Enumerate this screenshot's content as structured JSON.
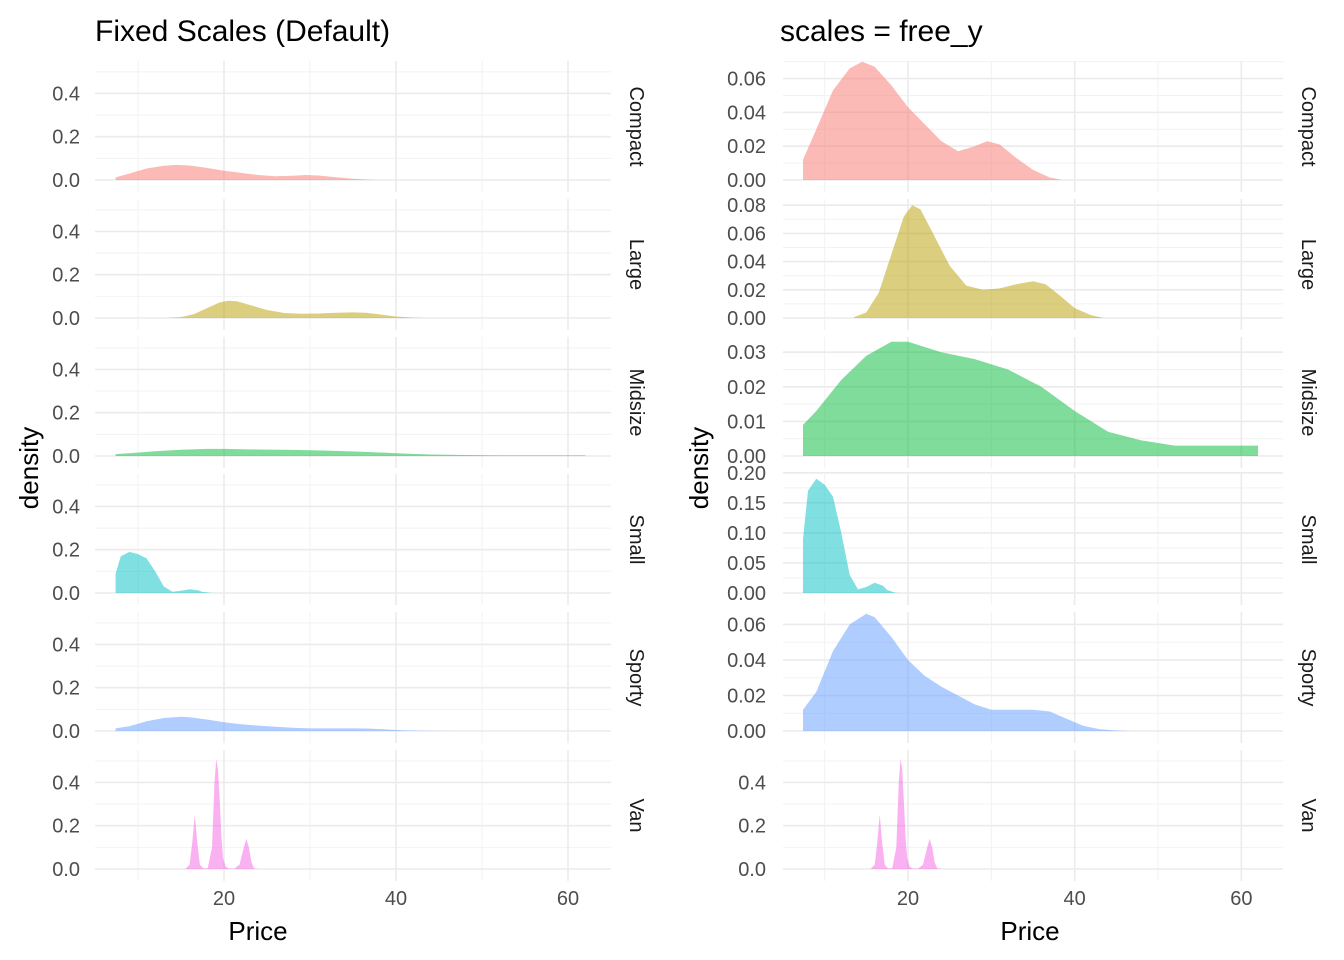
{
  "chart_data": [
    {
      "type": "area",
      "title": "Fixed Scales (Default)",
      "xlabel": "Price",
      "ylabel": "density",
      "scales": "fixed",
      "xlim": [
        5,
        65
      ],
      "x_ticks": [
        20,
        40,
        60
      ],
      "panels": [
        {
          "name": "Compact",
          "color": "#F8766D",
          "ylim": [
            0,
            0.55
          ],
          "y_ticks": [
            "0.0",
            "0.2",
            "0.4"
          ]
        },
        {
          "name": "Large",
          "color": "#B79F00",
          "ylim": [
            0,
            0.55
          ],
          "y_ticks": [
            "0.0",
            "0.2",
            "0.4"
          ]
        },
        {
          "name": "Midsize",
          "color": "#00BA38",
          "ylim": [
            0,
            0.55
          ],
          "y_ticks": [
            "0.0",
            "0.2",
            "0.4"
          ]
        },
        {
          "name": "Small",
          "color": "#00BFC4",
          "ylim": [
            0,
            0.55
          ],
          "y_ticks": [
            "0.0",
            "0.2",
            "0.4"
          ]
        },
        {
          "name": "Sporty",
          "color": "#619CFF",
          "ylim": [
            0,
            0.55
          ],
          "y_ticks": [
            "0.0",
            "0.2",
            "0.4"
          ]
        },
        {
          "name": "Van",
          "color": "#F564E3",
          "ylim": [
            0,
            0.55
          ],
          "y_ticks": [
            "0.0",
            "0.2",
            "0.4"
          ]
        }
      ]
    },
    {
      "type": "area",
      "title": "scales = free_y",
      "xlabel": "Price",
      "ylabel": "density",
      "scales": "free_y",
      "xlim": [
        5,
        65
      ],
      "x_ticks": [
        20,
        40,
        60
      ],
      "panels": [
        {
          "name": "Compact",
          "color": "#F8766D",
          "ylim": [
            0,
            0.0704
          ],
          "y_ticks": [
            "0.00",
            "0.02",
            "0.04",
            "0.06"
          ]
        },
        {
          "name": "Large",
          "color": "#B79F00",
          "ylim": [
            0,
            0.0844
          ],
          "y_ticks": [
            "0.00",
            "0.02",
            "0.04",
            "0.06",
            "0.08"
          ]
        },
        {
          "name": "Midsize",
          "color": "#00BA38",
          "ylim": [
            0,
            0.0344
          ],
          "y_ticks": [
            "0.00",
            "0.01",
            "0.02",
            "0.03"
          ]
        },
        {
          "name": "Small",
          "color": "#00BFC4",
          "ylim": [
            0,
            0.198
          ],
          "y_ticks": [
            "0.00",
            "0.05",
            "0.10",
            "0.15",
            "0.20"
          ]
        },
        {
          "name": "Sporty",
          "color": "#619CFF",
          "ylim": [
            0,
            0.067
          ],
          "y_ticks": [
            "0.00",
            "0.02",
            "0.04",
            "0.06"
          ]
        },
        {
          "name": "Van",
          "color": "#F564E3",
          "ylim": [
            0,
            0.55
          ],
          "y_ticks": [
            "0.0",
            "0.2",
            "0.4"
          ]
        }
      ]
    }
  ],
  "densities": {
    "Compact": {
      "x": [
        7.4,
        9,
        11,
        13,
        14.5,
        16,
        18,
        20,
        22,
        24,
        26,
        28,
        29.5,
        31,
        33,
        35,
        37,
        38.5
      ],
      "y": [
        0.012,
        0.03,
        0.053,
        0.066,
        0.07,
        0.067,
        0.056,
        0.043,
        0.033,
        0.023,
        0.017,
        0.02,
        0.023,
        0.021,
        0.013,
        0.006,
        0.0015,
        0
      ]
    },
    "Large": {
      "x": [
        13.5,
        15,
        16.5,
        18,
        19.5,
        20.5,
        21.5,
        23,
        25,
        27,
        29,
        31,
        33,
        35,
        36.5,
        38,
        40,
        42,
        43.5
      ],
      "y": [
        0.0005,
        0.004,
        0.018,
        0.045,
        0.072,
        0.08,
        0.077,
        0.06,
        0.037,
        0.023,
        0.02,
        0.021,
        0.024,
        0.026,
        0.024,
        0.017,
        0.007,
        0.002,
        0
      ]
    },
    "Midsize": {
      "x": [
        7.4,
        9,
        12,
        15,
        18,
        20,
        24,
        28,
        32,
        36,
        40,
        44,
        48,
        52,
        56,
        62
      ],
      "y": [
        0.009,
        0.013,
        0.022,
        0.029,
        0.033,
        0.033,
        0.03,
        0.028,
        0.025,
        0.02,
        0.013,
        0.007,
        0.0045,
        0.003,
        0.003,
        0.003
      ]
    },
    "Small": {
      "x": [
        7.4,
        8,
        9,
        10,
        11,
        12,
        13,
        14,
        15,
        16,
        17,
        17.5,
        18.5,
        19
      ],
      "y": [
        0.09,
        0.17,
        0.19,
        0.18,
        0.16,
        0.1,
        0.03,
        0.006,
        0.01,
        0.017,
        0.012,
        0.005,
        0.0005,
        0
      ]
    },
    "Sporty": {
      "x": [
        7.4,
        9,
        11,
        13,
        15,
        16,
        18,
        20,
        22,
        24,
        26,
        28,
        30,
        32,
        35,
        37,
        39,
        41,
        43,
        45,
        47
      ],
      "y": [
        0.012,
        0.022,
        0.045,
        0.06,
        0.066,
        0.064,
        0.053,
        0.04,
        0.031,
        0.025,
        0.02,
        0.015,
        0.012,
        0.012,
        0.012,
        0.011,
        0.007,
        0.003,
        0.001,
        0.0003,
        0
      ]
    },
    "Van": {
      "x": [
        15.5,
        16,
        16.3,
        16.6,
        16.9,
        17.2,
        17.6,
        18.1,
        18.6,
        18.9,
        19.1,
        19.3,
        19.5,
        19.7,
        19.9,
        20.2,
        20.6,
        21.2,
        21.8,
        22.3,
        22.6,
        22.9,
        23.2,
        23.5,
        24.0
      ],
      "y": [
        0,
        0.02,
        0.12,
        0.25,
        0.12,
        0.02,
        0.003,
        0.003,
        0.1,
        0.4,
        0.51,
        0.46,
        0.32,
        0.15,
        0.05,
        0.01,
        0.002,
        0.002,
        0.02,
        0.1,
        0.14,
        0.1,
        0.03,
        0.003,
        0
      ]
    }
  }
}
